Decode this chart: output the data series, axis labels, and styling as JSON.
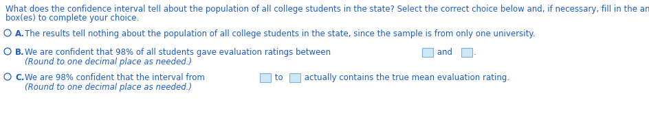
{
  "background_color": "#ffffff",
  "text_color": "#1a5ccc",
  "font_size": 8.5,
  "header_line1": "What does the confidence interval tell about the population of all college students in the state? Select the correct choice below and, if necessary, fill in the answer",
  "header_line2": "box(es) to complete your choice.",
  "option_A_text": "The results tell nothing about the population of all college students in the state, since the sample is from only one university.",
  "option_B_pre": "We are confident that 98% of all students gave evaluation ratings between",
  "option_B_mid": " and ",
  "option_B_line2": "(Round to one decimal place as needed.)",
  "option_C_pre": "We are 98% confident that the interval from",
  "option_C_mid": " to ",
  "option_C_post": " actually contains the true mean evaluation rating.",
  "option_C_line2": "(Round to one decimal place as needed.)",
  "box_edge_color": "#7ab0d4",
  "box_face_color": "#d0e8f5",
  "circle_color": "#1a5ccc",
  "label_A": "A.",
  "label_B": "B.",
  "label_C": "C."
}
